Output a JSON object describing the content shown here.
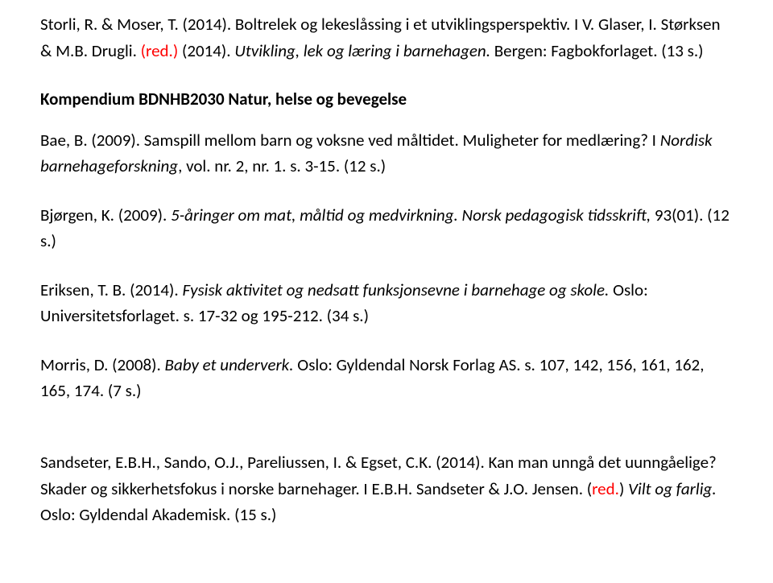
{
  "colors": {
    "text": "#000000",
    "red": "#ff0000",
    "background": "#ffffff"
  },
  "typography": {
    "font_family": "Calibri, 'Segoe UI', Arial, sans-serif",
    "font_size_pt": 21,
    "line_height": 1.55,
    "heading_weight": 700
  },
  "p1": {
    "a": "Storli, R. & Moser, T. (2014). Boltrelek og lekeslåssing i et utviklingsperspektiv. I V. Glaser, I. Størksen & M.B. Drugli. ",
    "b_red": "(red.)",
    "c": " (2014). ",
    "d_i": "Utvikling, lek og læring i barnehagen.",
    "e": " Bergen: Fagbokforlaget. (13 s.)"
  },
  "h1": "Kompendium BDNHB2030 Natur, helse og bevegelse",
  "p2": {
    "a": "Bae, B. (2009). Samspill mellom barn og voksne ved måltidet. Muligheter for medlæring? I ",
    "b_i": "Nordisk barnehageforskning",
    "c": ", vol. nr. 2, nr. 1. s. 3-15. (12 s.)"
  },
  "p3": {
    "a": "Bjørgen, K. (2009). ",
    "b_i": "5-åringer om mat, måltid og medvirkning. Norsk pedagogisk tidsskrift, ",
    "c": "93(01). (12 s.)"
  },
  "p4": {
    "a": "Eriksen, T. B. (2014). ",
    "b_i": "Fysisk aktivitet og nedsatt funksjonsevne i barnehage og skole. ",
    "c": "Oslo: Universitetsforlaget. s. 17-32 og 195-212. (34 s.)"
  },
  "p5": {
    "a": "Morris, D. (2008). ",
    "b_i": "Baby et underverk.",
    "c": " Oslo: Gyldendal Norsk Forlag AS. s. 107, 142, 156, 161, 162, 165, 174. (7 s.)"
  },
  "p6": {
    "a": "Sandseter, E.B.H., Sando, O.J., Pareliussen, I. & Egset, C.K. (2014). Kan man unngå det uunngåelige? Skader og sikkerhetsfokus i norske barnehager. I E.B.H. Sandseter & J.O. Jensen. (",
    "b_red": "red.",
    "c": ") ",
    "d_i": "Vilt og farlig.",
    "e": " Oslo: Gyldendal Akademisk. (15 s.)"
  }
}
